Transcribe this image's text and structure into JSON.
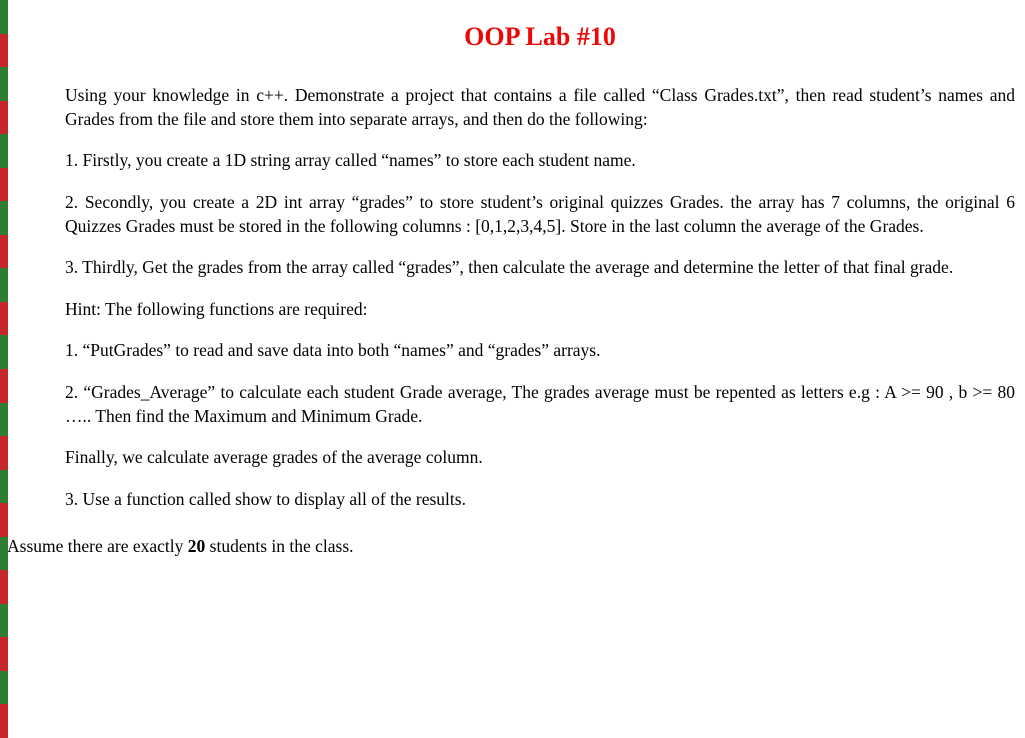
{
  "document": {
    "title": "OOP Lab #10",
    "title_color": "#ed0808",
    "title_fontsize": 26,
    "body_fontsize": 17.5,
    "text_color": "#000000",
    "background_color": "#ffffff",
    "border_colors": [
      "#2e7d32",
      "#c62828",
      "#2e7d32",
      "#c62828",
      "#2e7d32",
      "#c62828",
      "#2e7d32",
      "#c62828",
      "#2e7d32",
      "#c62828",
      "#2e7d32",
      "#c62828",
      "#2e7d32",
      "#c62828",
      "#2e7d32",
      "#c62828",
      "#2e7d32",
      "#c62828",
      "#2e7d32",
      "#c62828",
      "#2e7d32",
      "#c62828"
    ],
    "paragraphs": {
      "intro": "Using your knowledge in c++. Demonstrate a project that contains a file called “Class Grades.txt”, then read student’s names and Grades from the file and store them into separate arrays, and then do the following:",
      "step1": "1.  Firstly, you create a 1D string array called “names” to store each student name.",
      "step2": "2.   Secondly, you create a 2D int array “grades” to store student’s original quizzes Grades. the array has 7 columns, the original 6 Quizzes Grades must be stored in the following columns : [0,1,2,3,4,5]. Store in the last column the average of the Grades.",
      "step3": "3. Thirdly, Get the grades from the array called “grades”, then calculate the average and determine the letter of that final grade.",
      "hint_intro": "Hint: The following functions are required:",
      "func1": "1. “PutGrades” to read and save data into both “names” and “grades” arrays.",
      "func2": "2. “Grades_Average” to calculate each student Grade average, The grades average must be repented as letters e.g : A >= 90 , b >= 80 ….. Then find the Maximum and Minimum Grade.",
      "finally": "Finally, we calculate average grades of the average column.",
      "func3": "3. Use a function called show to display all of the results."
    },
    "footer": {
      "prefix": "Assume there are exactly ",
      "bold": "20",
      "suffix": " students in the class."
    }
  }
}
